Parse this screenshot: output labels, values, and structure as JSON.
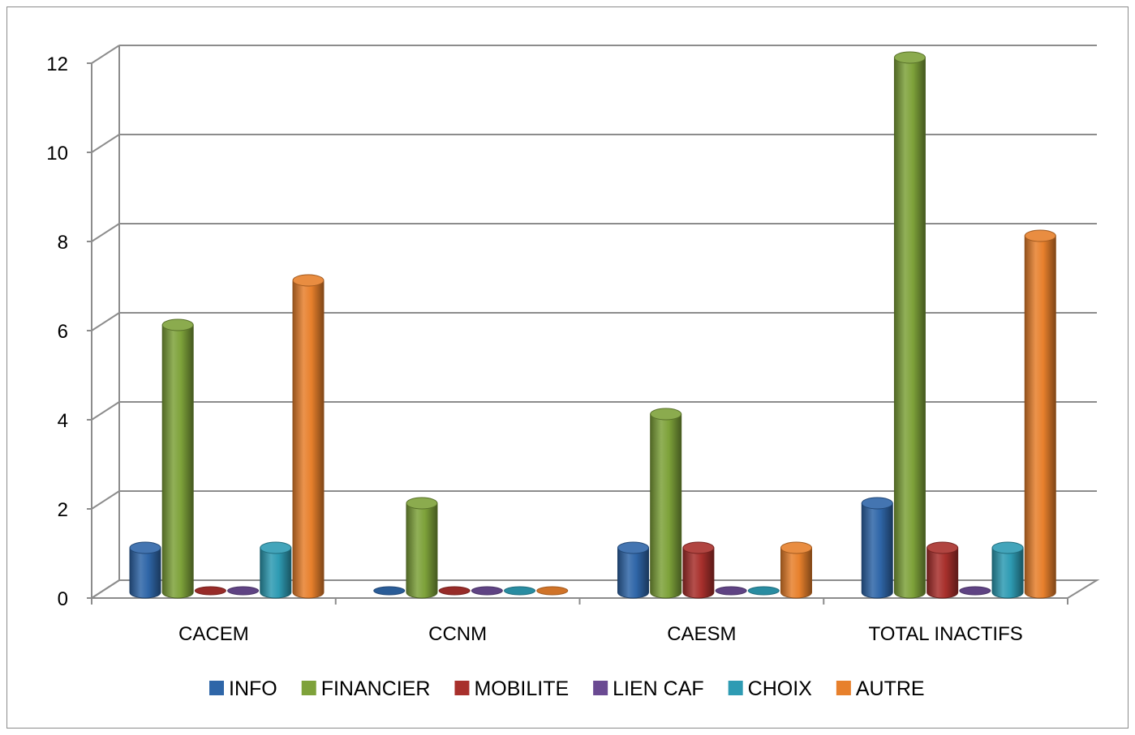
{
  "chart_data": {
    "type": "bar",
    "variant": "3d-cylinder",
    "title": "",
    "xlabel": "",
    "ylabel": "",
    "categories": [
      "CACEM",
      "CCNM",
      "CAESM",
      "TOTAL INACTIFS"
    ],
    "series": [
      {
        "name": "INFO",
        "color": "#2f66a8",
        "values": [
          1,
          0,
          1,
          2
        ]
      },
      {
        "name": "FINANCIER",
        "color": "#7ea23a",
        "values": [
          6,
          2,
          4,
          12
        ]
      },
      {
        "name": "MOBILITE",
        "color": "#a8302c",
        "values": [
          0,
          0,
          1,
          1
        ]
      },
      {
        "name": "LIEN CAF",
        "color": "#6a4a92",
        "values": [
          0,
          0,
          0,
          0
        ]
      },
      {
        "name": "CHOIX",
        "color": "#2e9bb3",
        "values": [
          1,
          0,
          0,
          1
        ]
      },
      {
        "name": "AUTRE",
        "color": "#e7802c",
        "values": [
          7,
          0,
          1,
          8
        ]
      }
    ],
    "ylim": [
      0,
      12
    ],
    "yticks": [
      "0",
      "2",
      "4",
      "6",
      "8",
      "10",
      "12"
    ],
    "grid": true,
    "legend_position": "bottom"
  }
}
